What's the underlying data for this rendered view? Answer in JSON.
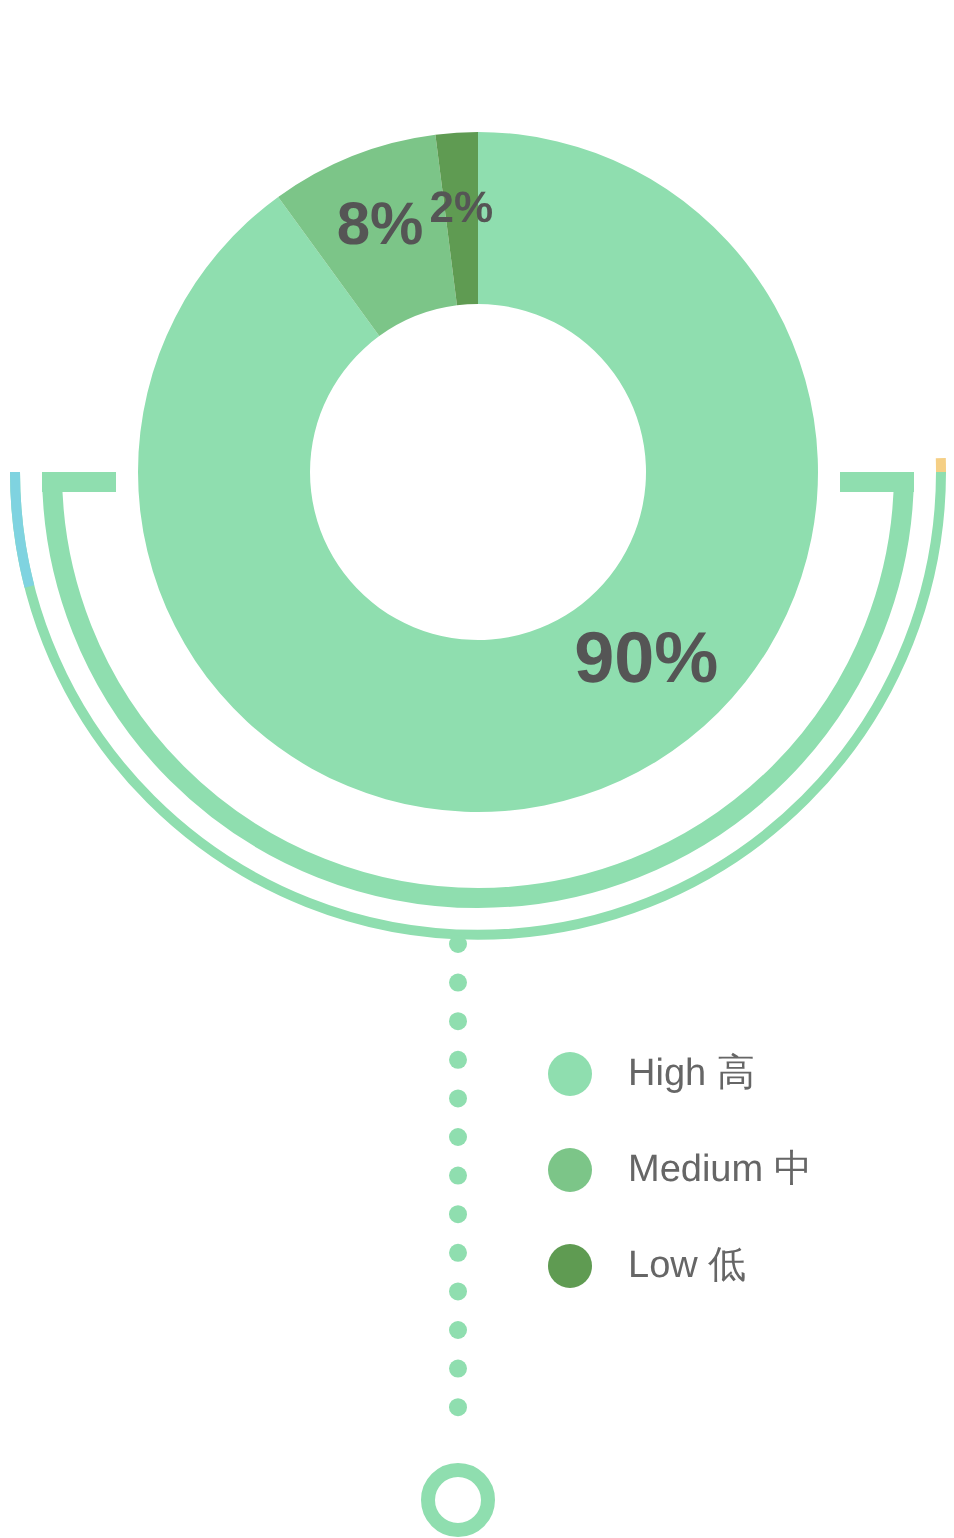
{
  "chart_data": {
    "type": "donut",
    "categories": [
      "High 高",
      "Medium 中",
      "Low 低"
    ],
    "values": [
      90,
      8,
      2
    ],
    "colors": [
      "#8fdeaf",
      "#7cc588",
      "#5f9b52"
    ],
    "value_labels": [
      "90%",
      "8%",
      "2%"
    ],
    "legend": "bottom right"
  }
}
